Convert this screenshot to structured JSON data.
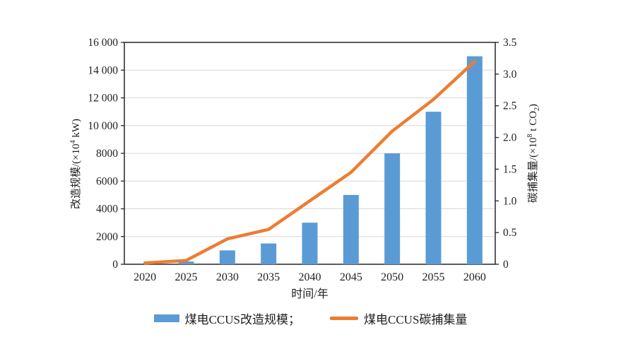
{
  "chart_data": {
    "type": "bar+line",
    "categories": [
      "2020",
      "2025",
      "2030",
      "2035",
      "2040",
      "2045",
      "2050",
      "2055",
      "2060"
    ],
    "series": [
      {
        "name": "煤电CCUS改造规模",
        "type": "bar",
        "axis": "left",
        "color": "#5B9BD5",
        "values": [
          0,
          200,
          1000,
          1500,
          3000,
          5000,
          8000,
          11000,
          15000
        ]
      },
      {
        "name": "煤电CCUS碳捕集量",
        "type": "line",
        "axis": "right",
        "color": "#ED7D31",
        "values": [
          0.02,
          0.06,
          0.4,
          0.55,
          1.0,
          1.45,
          2.1,
          2.6,
          3.2
        ]
      }
    ],
    "title": "",
    "xlabel": "时间/年",
    "ylabel_left": "改造规模/(×10⁴ kW)",
    "ylabel_right": "碳捕集量/(×10⁸ t CO₂)",
    "ylim_left": [
      0,
      16000
    ],
    "ylim_right": [
      0,
      3.5
    ],
    "yticks_left": {
      "values": [
        0,
        2000,
        4000,
        6000,
        8000,
        10000,
        12000,
        14000,
        16000
      ],
      "labels": [
        "0",
        "2000",
        "4000",
        "6000",
        "8000",
        "10 000",
        "12 000",
        "14 000",
        "16 000"
      ]
    },
    "yticks_right": {
      "values": [
        0,
        0.5,
        1.0,
        1.5,
        2.0,
        2.5,
        3.0,
        3.5
      ],
      "labels": [
        "0",
        "0.5",
        "1.0",
        "1.5",
        "2.0",
        "2.5",
        "3.0",
        "3.5"
      ]
    },
    "grid": "horizontal-light-gray",
    "legend_position": "bottom"
  },
  "axis_titles": {
    "left": {
      "pre": "改造规模/(×10",
      "sup": "4",
      "post": " kW)"
    },
    "right": {
      "pre": "碳捕集量/(×10",
      "sup": "8",
      "mid": " t CO",
      "sub": "2",
      "post": ")"
    },
    "x": "时间/年"
  },
  "legend": {
    "bar_label": "煤电CCUS改造规模；",
    "line_label": "煤电CCUS碳捕集量"
  },
  "colors": {
    "bar": "#5B9BD5",
    "line": "#ED7D31",
    "grid": "#d8d8d8",
    "axis": "#262626",
    "text": "#1f1f1f",
    "background": "#ffffff"
  }
}
